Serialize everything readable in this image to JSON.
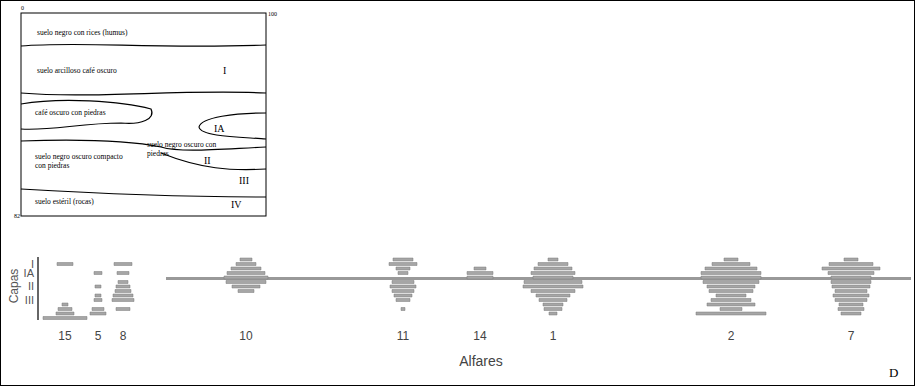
{
  "chart_data": {
    "type": "bar",
    "orientation": "horizontal",
    "y_label": "Capas",
    "x_label": "Alfares",
    "panel_letter": "D",
    "tick_labels": "y",
    "color": "#a6a6a6",
    "categories": [
      null,
      "I",
      null,
      "IA",
      null,
      null,
      "II",
      null,
      null,
      "III",
      null,
      null,
      null,
      null
    ],
    "series": [
      {
        "name": "15",
        "values": [
          null,
          16,
          null,
          null,
          null,
          null,
          null,
          null,
          null,
          null,
          6,
          14,
          18,
          44
        ]
      },
      {
        "name": "5",
        "values": [
          null,
          null,
          null,
          8,
          null,
          null,
          6,
          null,
          6,
          8,
          null,
          12,
          16,
          null
        ]
      },
      {
        "name": "8",
        "values": [
          null,
          18,
          null,
          12,
          null,
          10,
          14,
          16,
          20,
          22,
          null,
          14,
          null,
          null
        ]
      },
      {
        "name": "10",
        "values": [
          12,
          20,
          30,
          38,
          44,
          40,
          28,
          16,
          null,
          null,
          null,
          null,
          null,
          null
        ]
      },
      {
        "name": "11",
        "values": [
          20,
          28,
          14,
          10,
          null,
          22,
          26,
          22,
          18,
          14,
          null,
          4,
          null,
          null
        ]
      },
      {
        "name": "14",
        "values": [
          null,
          null,
          12,
          26,
          26,
          null,
          null,
          null,
          null,
          null,
          null,
          null,
          null,
          null
        ]
      },
      {
        "name": "1",
        "values": [
          10,
          30,
          38,
          44,
          40,
          58,
          60,
          44,
          34,
          28,
          20,
          18,
          8,
          null
        ]
      },
      {
        "name": "2",
        "values": [
          14,
          38,
          52,
          60,
          60,
          56,
          48,
          44,
          30,
          40,
          48,
          22,
          70,
          null
        ]
      },
      {
        "name": "7",
        "values": [
          14,
          44,
          58,
          46,
          40,
          40,
          38,
          32,
          36,
          32,
          24,
          26,
          20,
          null
        ]
      }
    ]
  },
  "profile": {
    "top_left": 0,
    "top_right": 100,
    "bottom_left": 82,
    "labels": [
      "suelo negro con rices (humus)",
      "suelo arcilloso café oscuro",
      "I",
      "café oscuro con piedras",
      "IA",
      "suelo negro oscuro con piedras",
      "II",
      "suelo negro oscuro compacto con piedras",
      "III",
      "suelo estéril (rocas)",
      "IV"
    ]
  }
}
